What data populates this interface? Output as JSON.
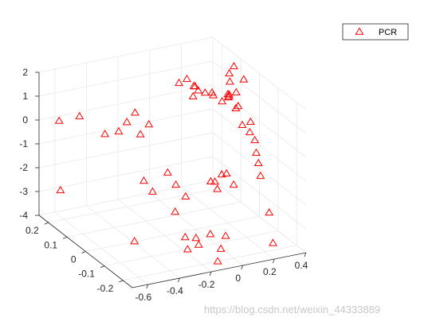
{
  "chart_data": {
    "type": "scatter",
    "title": "",
    "xlabel": "",
    "ylabel": "",
    "zlabel": "",
    "xlim": [
      -0.7,
      0.4
    ],
    "ylim": [
      -0.25,
      0.25
    ],
    "zlim": [
      -4,
      2
    ],
    "x_ticks": [
      "-0.6",
      "-0.4",
      "-0.2",
      "0",
      "0.2",
      "0.4"
    ],
    "y_ticks": [
      "-0.2",
      "-0.1",
      "0",
      "0.1",
      "0.2"
    ],
    "z_ticks": [
      "-4",
      "-3",
      "-2",
      "-1",
      "0",
      "1",
      "2"
    ],
    "grid": true,
    "legend_position": "top-right",
    "series": [
      {
        "name": "PCR",
        "marker": "triangle",
        "color": "#ff0000",
        "points": [
          [
            -0.62,
            0.21,
            0.1
          ],
          [
            -0.55,
            0.16,
            0.5
          ],
          [
            -0.6,
            0.22,
            -2.9
          ],
          [
            -0.45,
            -0.05,
            -3.6
          ],
          [
            -0.46,
            0.1,
            0.0
          ],
          [
            -0.42,
            0.06,
            0.3
          ],
          [
            -0.38,
            0.05,
            0.7
          ],
          [
            -0.34,
            0.04,
            1.1
          ],
          [
            -0.33,
            0.02,
            0.3
          ],
          [
            -0.3,
            0.0,
            0.8
          ],
          [
            -0.32,
            0.01,
            -1.6
          ],
          [
            -0.3,
            -0.02,
            -1.9
          ],
          [
            -0.24,
            -0.05,
            -1.0
          ],
          [
            -0.2,
            -0.06,
            -1.5
          ],
          [
            -0.24,
            -0.09,
            -2.4
          ],
          [
            -0.2,
            -0.11,
            -3.4
          ],
          [
            -0.22,
            -0.14,
            -3.7
          ],
          [
            -0.15,
            -0.07,
            -2.0
          ],
          [
            -0.12,
            -0.1,
            -3.6
          ],
          [
            -0.15,
            -0.14,
            -3.6
          ],
          [
            -0.1,
            -0.16,
            -3.1
          ],
          [
            -0.08,
            -0.2,
            -3.5
          ],
          [
            -0.05,
            -0.2,
            -3.0
          ],
          [
            -0.1,
            -0.2,
            -4.0
          ],
          [
            -0.05,
            -0.12,
            -1.2
          ],
          [
            -0.02,
            -0.13,
            -1.5
          ],
          [
            0.02,
            -0.12,
            -1.0
          ],
          [
            0.0,
            -0.1,
            -1.4
          ],
          [
            0.05,
            -0.12,
            -1.0
          ],
          [
            0.06,
            -0.15,
            -1.3
          ],
          [
            -0.05,
            0.05,
            1.9
          ],
          [
            0.0,
            0.05,
            2.0
          ],
          [
            0.02,
            0.03,
            1.8
          ],
          [
            -0.02,
            0.0,
            1.6
          ],
          [
            0.06,
            0.04,
            1.5
          ],
          [
            0.08,
            0.02,
            1.5
          ],
          [
            0.1,
            0.0,
            1.6
          ],
          [
            0.12,
            0.01,
            1.4
          ],
          [
            0.14,
            -0.02,
            1.3
          ],
          [
            0.16,
            -0.04,
            1.6
          ],
          [
            0.18,
            -0.06,
            1.2
          ],
          [
            0.2,
            0.0,
            1.4
          ],
          [
            0.22,
            0.01,
            1.3
          ],
          [
            0.26,
            0.04,
            1.6
          ],
          [
            0.28,
            0.06,
            1.8
          ],
          [
            0.3,
            0.04,
            1.1
          ],
          [
            0.32,
            0.1,
            0.5
          ],
          [
            0.28,
            -0.05,
            0.0
          ],
          [
            0.32,
            -0.02,
            0.2
          ],
          [
            0.36,
            0.08,
            0.2
          ],
          [
            0.38,
            0.12,
            1.6
          ],
          [
            0.3,
            -0.06,
            -0.3
          ],
          [
            0.36,
            -0.04,
            -2.0
          ],
          [
            0.37,
            -0.02,
            -1.6
          ],
          [
            0.38,
            0.0,
            -1.3
          ],
          [
            0.25,
            -0.2,
            -3.7
          ],
          [
            0.32,
            -0.12,
            -3.0
          ],
          [
            0.36,
            0.05,
            1.5
          ],
          [
            0.15,
            -0.12,
            0.9
          ],
          [
            0.04,
            0.04,
            1.7
          ]
        ]
      }
    ]
  },
  "watermark": "https://blog.csdn.net/weixin_44333889"
}
